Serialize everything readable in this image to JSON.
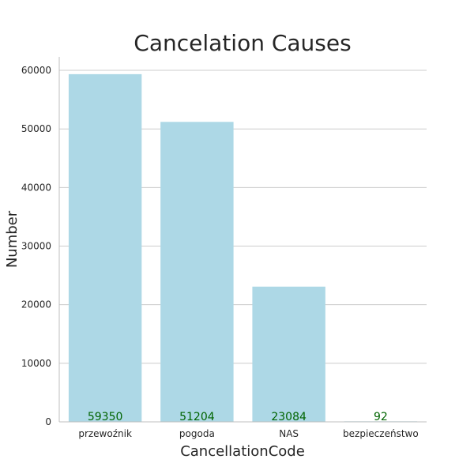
{
  "chart_data": {
    "type": "bar",
    "title": "Cancelation Causes",
    "xlabel": "CancellationCode",
    "ylabel": "Number",
    "categories": [
      "przewoźnik",
      "pogoda",
      "NAS",
      "bezpieczeństwo"
    ],
    "values": [
      59350,
      51204,
      23084,
      92
    ],
    "data_labels": [
      "59350",
      "51204",
      "23084",
      "92"
    ],
    "ylim": [
      0,
      62300
    ],
    "yticks": [
      0,
      10000,
      20000,
      30000,
      40000,
      50000,
      60000
    ],
    "ytick_labels": [
      "0",
      "10000",
      "20000",
      "30000",
      "40000",
      "50000",
      "60000"
    ],
    "grid": true,
    "bar_color": "#add8e6",
    "data_label_color": "#006400"
  }
}
